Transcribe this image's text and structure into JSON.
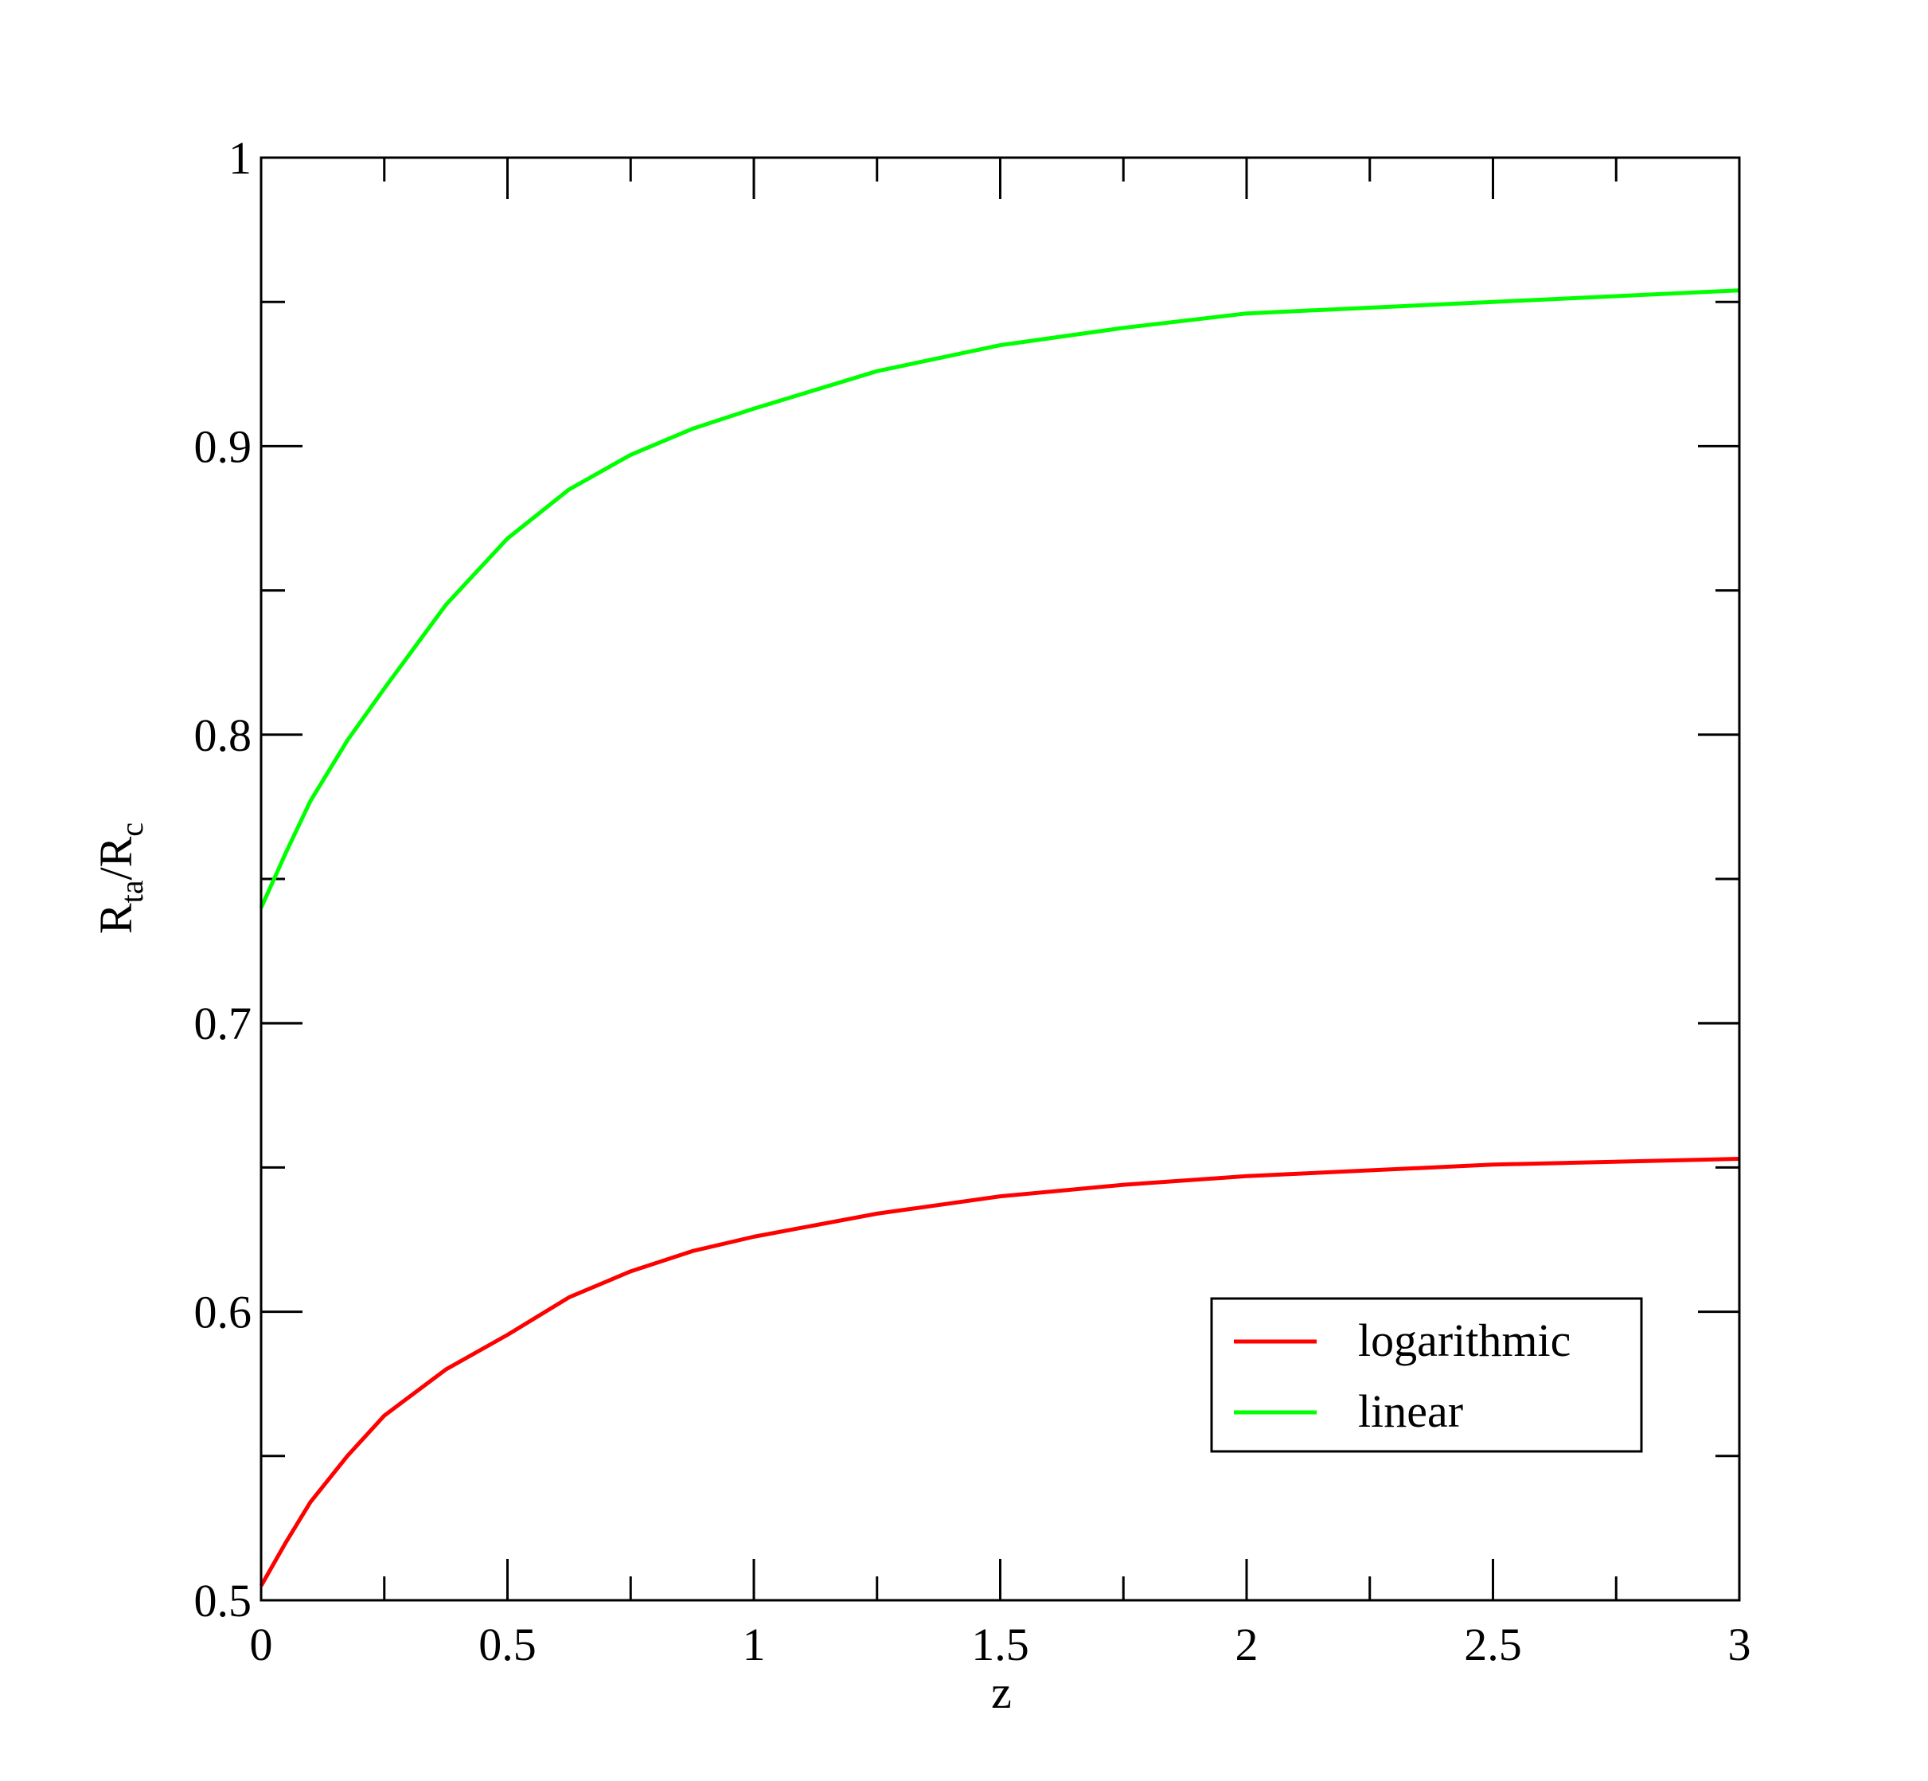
{
  "chart_data": {
    "type": "line",
    "x_label": "z",
    "y_label": [
      "R",
      "ta",
      "/R",
      "c"
    ],
    "xlim": [
      0,
      3
    ],
    "xticks": [
      0,
      0.5,
      1,
      1.5,
      2,
      2.5,
      3
    ],
    "ylim": [
      0.5,
      1
    ],
    "yticks": [
      0.5,
      0.6,
      0.7,
      0.8,
      0.9,
      1
    ],
    "x": [
      0,
      0.05,
      0.1,
      0.175,
      0.25,
      0.375,
      0.5,
      0.625,
      0.75,
      0.875,
      1,
      1.25,
      1.5,
      1.75,
      2,
      2.5,
      3
    ],
    "series": [
      {
        "name": "logarithmic",
        "color": "#ff0000",
        "values": [
          0.505,
          0.52,
          0.534,
          0.55,
          0.564,
          0.58,
          0.592,
          0.605,
          0.614,
          0.621,
          0.626,
          0.634,
          0.64,
          0.644,
          0.647,
          0.651,
          0.653
        ]
      },
      {
        "name": "linear",
        "color": "#00ff00",
        "values": [
          0.74,
          0.759,
          0.777,
          0.798,
          0.816,
          0.845,
          0.868,
          0.885,
          0.897,
          0.906,
          0.913,
          0.926,
          0.935,
          0.941,
          0.946,
          0.95,
          0.954
        ]
      }
    ],
    "legend": "lower-right"
  }
}
